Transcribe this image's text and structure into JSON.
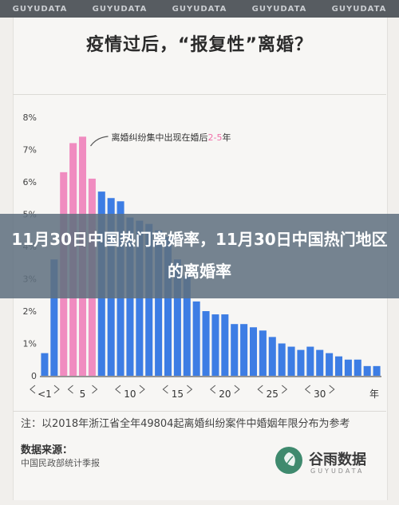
{
  "watermark": {
    "text": "GUYUDATA"
  },
  "title": "疫情过后，“报复性”离婚？",
  "overlay_headline": "11月30日中国热门离婚率，11月30日中国热门地区的离婚率",
  "annotation": {
    "prefix": "离婚纠纷集中出现在婚后",
    "highlight": "2-5",
    "suffix": "年"
  },
  "note": "注：以2018年浙江省全年49804起离婚纠纷案件中婚姻年限分布为参考",
  "source": {
    "title": "数据来源：",
    "text": "中国民政部统计季报"
  },
  "logo": {
    "name": "谷雨数据",
    "en": "GUYUDATA"
  },
  "chart_data": {
    "type": "bar",
    "ylim": [
      0,
      8
    ],
    "ytick_labels": [
      "0",
      "1%",
      "2%",
      "3%",
      "4%",
      "5%",
      "6%",
      "7%",
      "8%"
    ],
    "xtick_labels": [
      "<1",
      "5",
      "10",
      "15",
      "20",
      "25",
      "30",
      "年"
    ],
    "values": [
      0.7,
      3.6,
      6.3,
      7.2,
      7.4,
      6.1,
      5.7,
      5.5,
      5.4,
      4.9,
      4.8,
      4.7,
      4.5,
      4.3,
      3.6,
      3.1,
      2.3,
      2.0,
      1.9,
      1.9,
      1.6,
      1.6,
      1.5,
      1.4,
      1.2,
      1.0,
      0.9,
      0.8,
      0.9,
      0.8,
      0.7,
      0.6,
      0.5,
      0.5,
      0.3,
      0.3
    ],
    "highlight_range": [
      2,
      5
    ],
    "colors": {
      "normal": "#3d7de4",
      "highlight": "#f08cc0",
      "highlight_text": "#f06ea8"
    }
  }
}
